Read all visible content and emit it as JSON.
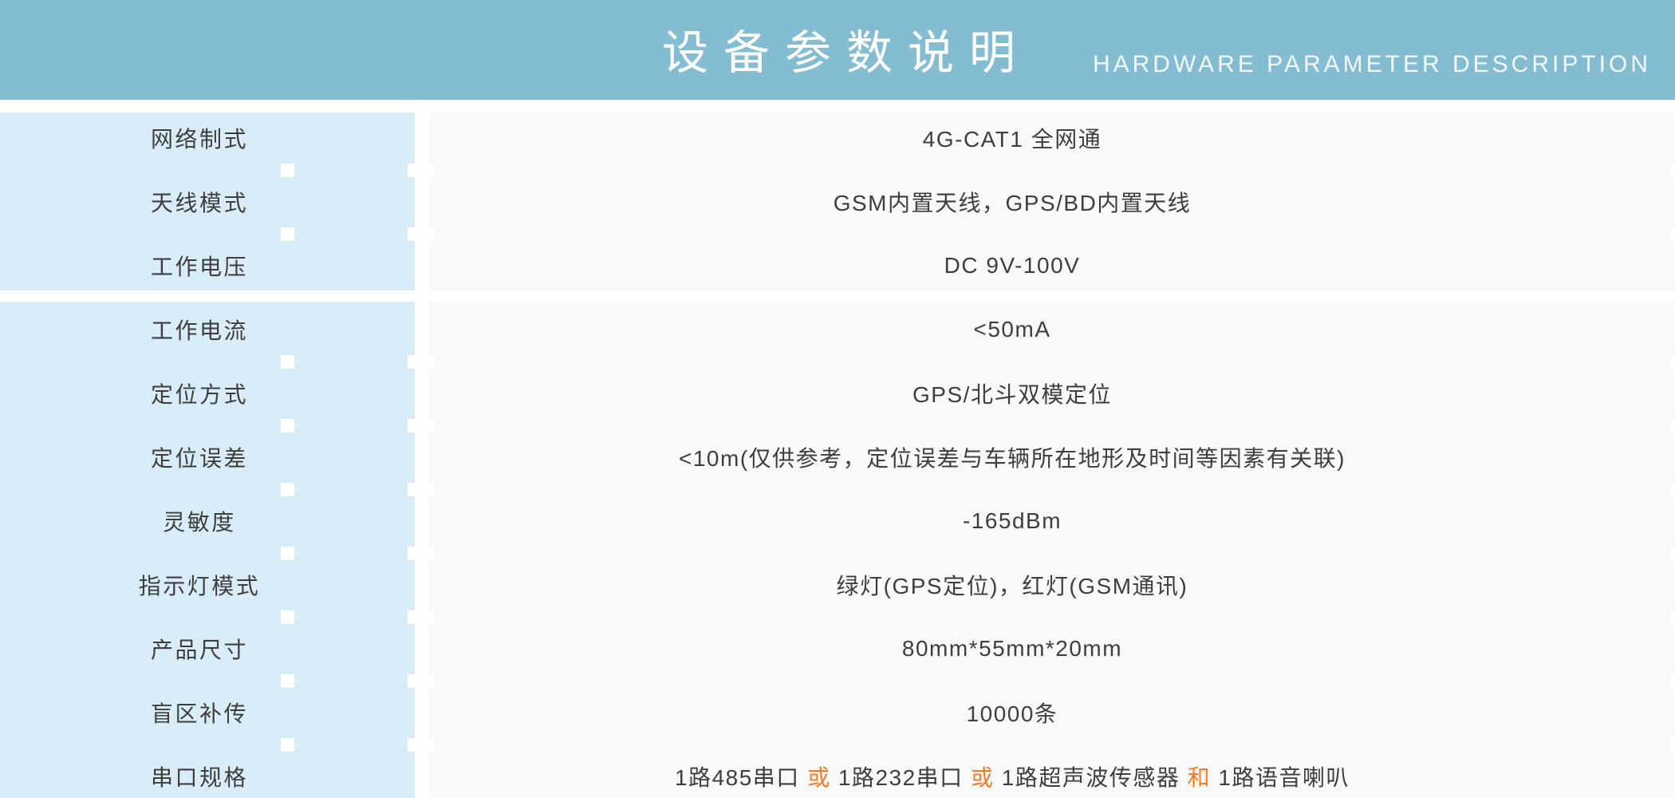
{
  "header": {
    "title": "设备参数说明",
    "subtitle": "HARDWARE PARAMETER DESCRIPTION"
  },
  "colors": {
    "header_bg": "#84bcd2",
    "label_panel_bg": "#d9edf9",
    "value_panel_bg": "#f9f9f9",
    "text": "#3e3e3e",
    "highlight": "#ee7d2d",
    "title_text": "#fdfefe"
  },
  "table": {
    "sections": [
      {
        "rows": [
          {
            "label": "网络制式",
            "value": "4G-CAT1 全网通"
          },
          {
            "label": "天线模式",
            "value": "GSM内置天线，GPS/BD内置天线"
          },
          {
            "label": "工作电压",
            "value": "DC 9V-100V"
          }
        ]
      },
      {
        "rows": [
          {
            "label": "工作电流",
            "value": "<50mA"
          },
          {
            "label": "定位方式",
            "value": "GPS/北斗双模定位"
          },
          {
            "label": "定位误差",
            "value": "<10m(仅供参考，定位误差与车辆所在地形及时间等因素有关联)"
          },
          {
            "label": "灵敏度",
            "value": "-165dBm"
          },
          {
            "label": "指示灯模式",
            "value": "绿灯(GPS定位)，红灯(GSM通讯)"
          },
          {
            "label": "产品尺寸",
            "value": "80mm*55mm*20mm"
          },
          {
            "label": "盲区补传",
            "value": "10000条"
          },
          {
            "label": "串口规格",
            "value_segments": [
              {
                "text": "1路485串口 "
              },
              {
                "text": "或",
                "highlight": true
              },
              {
                "text": " 1路232串口 "
              },
              {
                "text": "或",
                "highlight": true
              },
              {
                "text": " 1路超声波传感器 "
              },
              {
                "text": "和",
                "highlight": true
              },
              {
                "text": " 1路语音喇叭"
              }
            ]
          }
        ]
      }
    ]
  }
}
